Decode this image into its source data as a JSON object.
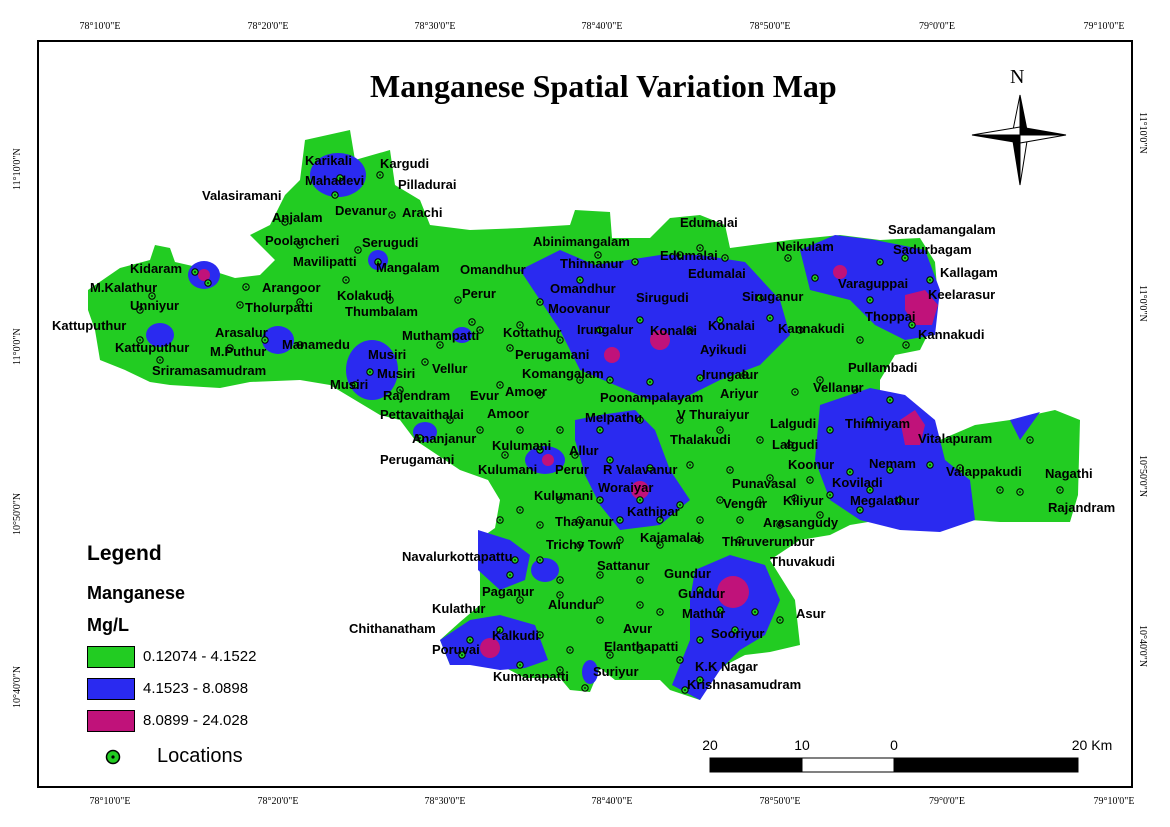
{
  "map": {
    "title": "Manganese Spatial Variation Map",
    "north_label": "N",
    "colors": {
      "low": "#22cc22",
      "mid": "#2a2af0",
      "high": "#c0127a",
      "location_fill": "#22cc22"
    },
    "top_ticks": [
      "78°10'0\"E",
      "78°20'0\"E",
      "78°30'0\"E",
      "78°40'0\"E",
      "78°50'0\"E",
      "79°0'0\"E",
      "79°10'0\"E"
    ],
    "bottom_ticks": [
      "78°10'0\"E",
      "78°20'0\"E",
      "78°30'0\"E",
      "78°40'0\"E",
      "78°50'0\"E",
      "79°0'0\"E",
      "79°10'0\"E"
    ],
    "left_ticks": [
      "11°10'0\"N",
      "11°0'0\"N",
      "10°50'0\"N",
      "10°40'0\"N"
    ],
    "right_ticks": [
      "11°10'0\"N",
      "11°0'0\"N",
      "10°50'0\"N",
      "10°40'0\"N"
    ]
  },
  "legend": {
    "title": "Legend",
    "subtitle": "Manganese",
    "unit": "Mg/L",
    "classes": [
      {
        "label": "0.12074 - 4.1522",
        "color": "#22cc22"
      },
      {
        "label": "4.1523 - 8.0898",
        "color": "#2a2af0"
      },
      {
        "label": "8.0899 - 24.028",
        "color": "#c0127a"
      }
    ],
    "locations_label": "Locations"
  },
  "scale_bar": {
    "labels": [
      "20",
      "10",
      "0",
      "20 Km"
    ]
  },
  "place_names": [
    "Karikali",
    "Kargudi",
    "Mahadevi",
    "Pilladurai",
    "Valasiramani",
    "Devanur",
    "Arachi",
    "Anjalam",
    "Poolancheri",
    "Serugudi",
    "Mavilipatti",
    "Mangalam",
    "Kidaram",
    "M.Kalathur",
    "Arangoor",
    "Kolakudi",
    "Unniyur",
    "Tholurpatti",
    "Thumbalam",
    "Omandhur",
    "Perur",
    "Abinimangalam",
    "Thinnanur",
    "Edumalai",
    "Edumalai",
    "Edumalai",
    "Neikulam",
    "Saradamangalam",
    "Sadurbagam",
    "Kallagam",
    "Varaguppai",
    "Keelarasur",
    "Thoppai",
    "Kannakudi",
    "Kannakudi",
    "Omandhur",
    "Moovanur",
    "Sirugudi",
    "Siruganur",
    "Kattuputhur",
    "Arasalur",
    "Kattuputhur",
    "M.Puthur",
    "Manamedu",
    "Musiri",
    "Muthampatti",
    "Kottathur",
    "Irungalur",
    "Konalai",
    "Konalai",
    "Ayikudi",
    "Perugamani",
    "Musiri",
    "Vellur",
    "Sriramasamudram",
    "Musiri",
    "Komangalam",
    "Rajendram",
    "Evur",
    "Amoor",
    "Irungalur",
    "Ariyur",
    "Pullambadi",
    "Vellanur",
    "Pettavaithalai",
    "Amoor",
    "Poonampalayam",
    "Melpathu",
    "V Thuraiyur",
    "Thinniyam",
    "Lalgudi",
    "Vitalapuram",
    "Ananjanur",
    "Thalakudi",
    "Lalgudi",
    "Perugamani",
    "Kulumani",
    "Allur",
    "Kulumani",
    "Perur",
    "R Valavanur",
    "Koonur",
    "Nemam",
    "Valappakudi",
    "Nagathi",
    "Woraiyar",
    "Punavasal",
    "Koviladi",
    "Kiliyur",
    "Megalathur",
    "Rajandram",
    "Kulumani",
    "Kathipar",
    "Vengur",
    "Thayanur",
    "Arasangudy",
    "Kajamalai",
    "Trichy Town",
    "Thiruverumbur",
    "Navalurkottapattu",
    "Thuvakudi",
    "Sattanur",
    "Gundur",
    "Paganur",
    "Gundur",
    "Alundur",
    "Kulathur",
    "Mathur",
    "Asur",
    "Chithanatham",
    "Kalkudi",
    "Avur",
    "Sooriyur",
    "Poruvai",
    "Elanthapatti",
    "K.K Nagar",
    "Kumarapatti",
    "Suriyur",
    "Krishnasamudram"
  ]
}
